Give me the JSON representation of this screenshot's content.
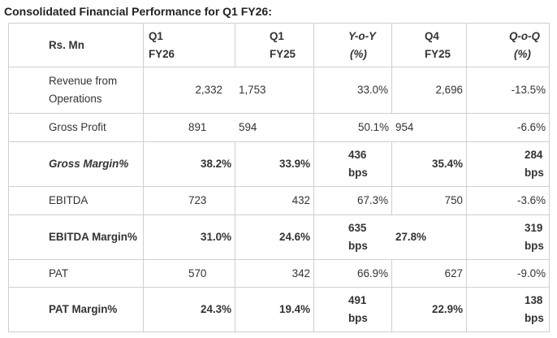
{
  "title": "Consolidated Financial Performance for Q1 FY26:",
  "header": {
    "label": "Rs. Mn",
    "cols": [
      {
        "l1": "Q1",
        "l2": "FY26"
      },
      {
        "l1": "Q1",
        "l2": "FY25"
      },
      {
        "l1": "Y-o-Y",
        "l2": "(%)"
      },
      {
        "l1": "Q4",
        "l2": "FY25"
      },
      {
        "l1": "Q-o-Q",
        "l2": "(%)"
      }
    ]
  },
  "rows": [
    {
      "label_l1": "Revenue from",
      "label_l2": "Operations",
      "q1fy26": "2,332",
      "q1fy25": "1,753",
      "yoy": "33.0%",
      "q4fy25": "2,696",
      "qoq": "-13.5%"
    },
    {
      "label": "Gross Profit",
      "q1fy26": "891",
      "q1fy25": "594",
      "yoy": "50.1%",
      "q4fy25": "954",
      "qoq": "-6.6%"
    },
    {
      "label": "Gross Margin%",
      "q1fy26": "38.2%",
      "q1fy25": "33.9%",
      "yoy_l1": "436",
      "yoy_l2": "bps",
      "q4fy25": "35.4%",
      "qoq_l1": "284",
      "qoq_l2": "bps"
    },
    {
      "label": "EBITDA",
      "q1fy26": "723",
      "q1fy25": "432",
      "yoy": "67.3%",
      "q4fy25": "750",
      "qoq": "-3.6%"
    },
    {
      "label": "EBITDA Margin%",
      "q1fy26": "31.0%",
      "q1fy25": "24.6%",
      "yoy_l1": "635",
      "yoy_l2": "bps",
      "q4fy25": "27.8%",
      "qoq_l1": "319",
      "qoq_l2": "bps"
    },
    {
      "label": "PAT",
      "q1fy26": "570",
      "q1fy25": "342",
      "yoy": "66.9%",
      "q4fy25": "627",
      "qoq": "-9.0%"
    },
    {
      "label": "PAT Margin%",
      "q1fy26": "24.3%",
      "q1fy25": "19.4%",
      "yoy_l1": "491",
      "yoy_l2": "bps",
      "q4fy25": "22.9%",
      "qoq_l1": "138",
      "qoq_l2": "bps"
    }
  ]
}
